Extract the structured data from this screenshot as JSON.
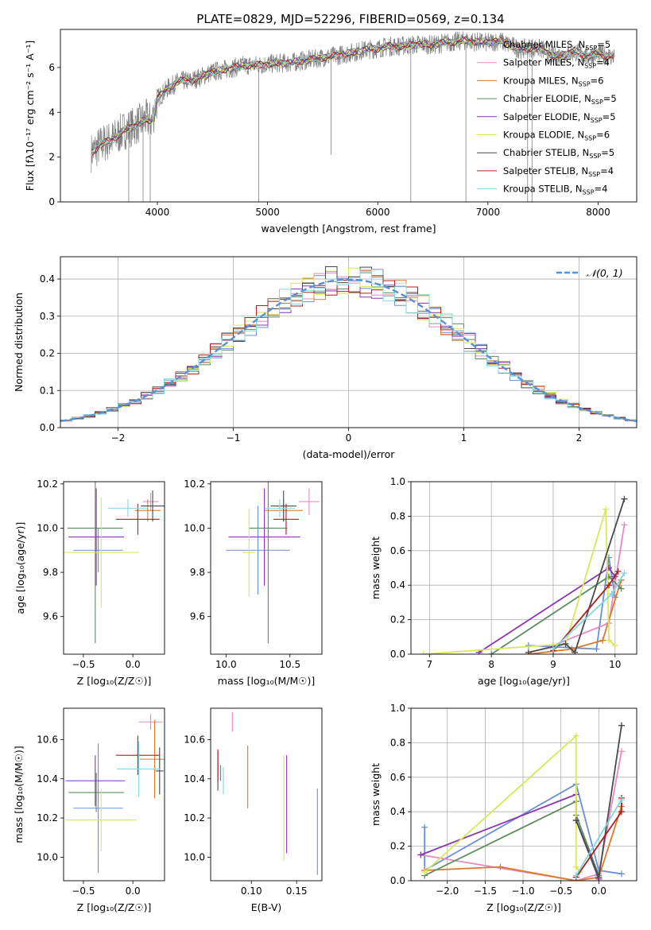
{
  "figure_title": "PLATE=0829, MJD=52296, FIBERID=0569, z=0.134",
  "colors": {
    "Chabrier MILES": "#6b8fd6",
    "Salpeter MILES": "#e88abf",
    "Kroupa MILES": "#dd7a2a",
    "Chabrier ELODIE": "#5e8c62",
    "Salpeter ELODIE": "#8a36b0",
    "Kroupa ELODIE": "#d9e85a",
    "Chabrier STELIB": "#4a4a4a",
    "Salpeter STELIB": "#b01e1e",
    "Kroupa STELIB": "#7ed9de",
    "data": "#808080",
    "normal": "#5b8fd6"
  },
  "chart_data": [
    {
      "id": "spectrum",
      "type": "line",
      "xlabel": "wavelength [Angstrom, rest frame]",
      "ylabel": "Flux [fλ10⁻¹⁷ erg cm⁻² s⁻¹ A⁻¹]",
      "xlim": [
        3120,
        8350
      ],
      "ylim": [
        0,
        7.7
      ],
      "xticks": [
        4000,
        5000,
        6000,
        7000,
        8000
      ],
      "yticks": [
        0,
        2,
        4,
        6
      ],
      "legend_position": "upper-right",
      "legend": [
        {
          "model": "Chabrier MILES",
          "n": "5"
        },
        {
          "model": "Salpeter MILES",
          "n": "4"
        },
        {
          "model": "Kroupa MILES",
          "n": "6"
        },
        {
          "model": "Chabrier ELODIE",
          "n": "5"
        },
        {
          "model": "Salpeter ELODIE",
          "n": "5"
        },
        {
          "model": "Kroupa ELODIE",
          "n": "6"
        },
        {
          "model": "Chabrier STELIB",
          "n": "5"
        },
        {
          "model": "Salpeter STELIB",
          "n": "4"
        },
        {
          "model": "Kroupa STELIB",
          "n": "4"
        }
      ],
      "continuum": [
        [
          3400,
          2.2
        ],
        [
          3500,
          2.6
        ],
        [
          3600,
          2.8
        ],
        [
          3700,
          3.2
        ],
        [
          3800,
          3.4
        ],
        [
          3900,
          3.7
        ],
        [
          3950,
          3.6
        ],
        [
          4000,
          4.6
        ],
        [
          4100,
          5.1
        ],
        [
          4200,
          5.4
        ],
        [
          4300,
          5.4
        ],
        [
          4400,
          5.6
        ],
        [
          4500,
          5.8
        ],
        [
          4600,
          5.9
        ],
        [
          4700,
          6.0
        ],
        [
          4800,
          6.1
        ],
        [
          4900,
          6.1
        ],
        [
          5000,
          6.15
        ],
        [
          5100,
          6.2
        ],
        [
          5200,
          6.2
        ],
        [
          5300,
          6.3
        ],
        [
          5400,
          6.35
        ],
        [
          5500,
          6.45
        ],
        [
          5600,
          6.5
        ],
        [
          5700,
          6.6
        ],
        [
          5800,
          6.7
        ],
        [
          5900,
          6.8
        ],
        [
          6000,
          6.85
        ],
        [
          6100,
          6.95
        ],
        [
          6200,
          6.95
        ],
        [
          6300,
          7.0
        ],
        [
          6400,
          7.05
        ],
        [
          6500,
          7.0
        ],
        [
          6600,
          7.1
        ],
        [
          6700,
          7.15
        ],
        [
          6800,
          7.2
        ],
        [
          6900,
          7.15
        ],
        [
          7000,
          7.1
        ],
        [
          7100,
          7.2
        ],
        [
          7200,
          7.0
        ],
        [
          7300,
          6.8
        ],
        [
          7400,
          6.9
        ],
        [
          7500,
          6.8
        ],
        [
          7600,
          6.5
        ],
        [
          7700,
          6.6
        ],
        [
          7800,
          6.7
        ],
        [
          7900,
          6.5
        ],
        [
          8000,
          6.6
        ],
        [
          8100,
          6.5
        ]
      ]
    },
    {
      "id": "residuals",
      "type": "histogram",
      "xlabel": "(data-model)/error",
      "ylabel": "Normed distribution",
      "xlim": [
        -2.5,
        2.5
      ],
      "ylim": [
        0,
        0.46
      ],
      "xticks": [
        -2,
        -1,
        0,
        1,
        2
      ],
      "yticks": [
        0.0,
        0.1,
        0.2,
        0.3,
        0.4
      ],
      "grid": true,
      "bin_width": 0.1,
      "legend_label": "𝒩(0, 1)",
      "legend_position": "upper-right"
    },
    {
      "id": "age-vs-Z",
      "type": "errorbar",
      "xlabel": "Z [log₁₀(Z/Z☉)]",
      "ylabel": "age  [log₁₀(age/yr)]",
      "xlim": [
        -0.7,
        0.32
      ],
      "ylim": [
        9.43,
        10.21
      ],
      "xticks": [
        -0.5,
        0.0
      ],
      "yticks": [
        9.6,
        9.8,
        10.0,
        10.2
      ],
      "points": [
        {
          "model": "Chabrier MILES",
          "x": -0.35,
          "y": 9.9,
          "xerr": 0.25,
          "yerr": 0.1
        },
        {
          "model": "Salpeter MILES",
          "x": 0.18,
          "y": 10.12,
          "xerr": 0.08,
          "yerr": 0.04
        },
        {
          "model": "Kroupa MILES",
          "x": 0.15,
          "y": 10.08,
          "xerr": 0.13,
          "yerr": 0.05
        },
        {
          "model": "Chabrier ELODIE",
          "x": -0.38,
          "y": 10.0,
          "xerr": 0.28,
          "yerr": 0.52
        },
        {
          "model": "Salpeter ELODIE",
          "x": -0.37,
          "y": 9.96,
          "xerr": 0.28,
          "yerr": 0.22
        },
        {
          "model": "Kroupa ELODIE",
          "x": -0.32,
          "y": 9.89,
          "xerr": 0.38,
          "yerr": 0.25
        },
        {
          "model": "Chabrier STELIB",
          "x": 0.2,
          "y": 10.1,
          "xerr": 0.12,
          "yerr": 0.07
        },
        {
          "model": "Salpeter STELIB",
          "x": 0.05,
          "y": 10.04,
          "xerr": 0.22,
          "yerr": 0.07
        },
        {
          "model": "Kroupa STELIB",
          "x": -0.05,
          "y": 10.09,
          "xerr": 0.2,
          "yerr": 0.04
        }
      ]
    },
    {
      "id": "age-vs-mass",
      "type": "errorbar",
      "xlabel": "mass [log₁₀(M/M☉)]",
      "ylabel": "",
      "xlim": [
        9.88,
        10.75
      ],
      "ylim": [
        9.43,
        10.21
      ],
      "xticks": [
        10.0,
        10.5
      ],
      "yticks": [
        9.6,
        9.8,
        10.0,
        10.2
      ],
      "points": [
        {
          "model": "Chabrier MILES",
          "x": 10.25,
          "y": 9.9,
          "xerr": 0.25,
          "yerr": 0.2
        },
        {
          "model": "Salpeter MILES",
          "x": 10.65,
          "y": 10.12,
          "xerr": 0.08,
          "yerr": 0.06
        },
        {
          "model": "Kroupa MILES",
          "x": 10.45,
          "y": 10.08,
          "xerr": 0.15,
          "yerr": 0.05
        },
        {
          "model": "Chabrier ELODIE",
          "x": 10.33,
          "y": 10.0,
          "xerr": 0.15,
          "yerr": 0.52
        },
        {
          "model": "Salpeter ELODIE",
          "x": 10.3,
          "y": 9.96,
          "xerr": 0.28,
          "yerr": 0.22
        },
        {
          "model": "Kroupa ELODIE",
          "x": 10.18,
          "y": 9.89,
          "xerr": 0.05,
          "yerr": 0.2
        },
        {
          "model": "Chabrier STELIB",
          "x": 10.45,
          "y": 10.1,
          "xerr": 0.1,
          "yerr": 0.07
        },
        {
          "model": "Salpeter STELIB",
          "x": 10.47,
          "y": 10.04,
          "xerr": 0.1,
          "yerr": 0.07
        },
        {
          "model": "Kroupa STELIB",
          "x": 10.42,
          "y": 10.09,
          "xerr": 0.12,
          "yerr": 0.04
        }
      ]
    },
    {
      "id": "mw-vs-age",
      "type": "line",
      "xlabel": "age  [log₁₀(age/yr)]",
      "ylabel": "mass weight",
      "xlim": [
        6.7,
        10.35
      ],
      "ylim": [
        0,
        1.0
      ],
      "xticks": [
        7,
        8,
        9,
        10
      ],
      "yticks": [
        0.0,
        0.2,
        0.4,
        0.6,
        0.8,
        1.0
      ],
      "grid": true,
      "series": [
        {
          "model": "Chabrier MILES",
          "x": [
            8.6,
            9.7,
            9.9,
            10.0
          ],
          "y": [
            0.05,
            0.03,
            0.56,
            0.33
          ]
        },
        {
          "model": "Salpeter MILES",
          "x": [
            9.0,
            9.9,
            10.15
          ],
          "y": [
            0.05,
            0.18,
            0.75
          ]
        },
        {
          "model": "Kroupa MILES",
          "x": [
            8.6,
            9.3,
            9.8,
            10.1
          ],
          "y": [
            0.0,
            0.03,
            0.08,
            0.43
          ]
        },
        {
          "model": "Chabrier ELODIE",
          "x": [
            8.0,
            9.9,
            10.1
          ],
          "y": [
            0.0,
            0.45,
            0.38
          ]
        },
        {
          "model": "Salpeter ELODIE",
          "x": [
            7.8,
            9.9,
            10.0
          ],
          "y": [
            0.01,
            0.5,
            0.45
          ]
        },
        {
          "model": "Kroupa ELODIE",
          "x": [
            6.9,
            9.2,
            9.85,
            9.9,
            10.0
          ],
          "y": [
            0.0,
            0.06,
            0.84,
            0.08,
            0.05
          ]
        },
        {
          "model": "Chabrier STELIB",
          "x": [
            8.6,
            9.2,
            9.35,
            10.15
          ],
          "y": [
            0.01,
            0.06,
            0.01,
            0.9
          ]
        },
        {
          "model": "Salpeter STELIB",
          "x": [
            9.0,
            9.9,
            10.05
          ],
          "y": [
            0.02,
            0.4,
            0.48
          ]
        },
        {
          "model": "Kroupa STELIB",
          "x": [
            9.0,
            9.95,
            10.15
          ],
          "y": [
            0.03,
            0.35,
            0.47
          ]
        }
      ]
    },
    {
      "id": "mass-vs-Z",
      "type": "errorbar",
      "xlabel": "Z [log₁₀(Z/Z☉)]",
      "ylabel": "mass [log₁₀(M/M☉)]",
      "xlim": [
        -0.7,
        0.32
      ],
      "ylim": [
        9.88,
        10.76
      ],
      "xticks": [
        -0.5,
        0.0
      ],
      "yticks": [
        10.0,
        10.2,
        10.4,
        10.6
      ],
      "points": [
        {
          "model": "Chabrier MILES",
          "x": -0.35,
          "y": 10.25,
          "xerr": 0.25,
          "yerr": 0.33
        },
        {
          "model": "Salpeter MILES",
          "x": 0.18,
          "y": 10.69,
          "xerr": 0.12,
          "yerr": 0.04
        },
        {
          "model": "Kroupa MILES",
          "x": 0.22,
          "y": 10.5,
          "xerr": 0.15,
          "yerr": 0.2
        },
        {
          "model": "Chabrier ELODIE",
          "x": -0.37,
          "y": 10.33,
          "xerr": 0.28,
          "yerr": 0.1
        },
        {
          "model": "Salpeter ELODIE",
          "x": -0.38,
          "y": 10.39,
          "xerr": 0.3,
          "yerr": 0.13
        },
        {
          "model": "Kroupa ELODIE",
          "x": -0.32,
          "y": 10.19,
          "xerr": 0.36,
          "yerr": 0.16
        },
        {
          "model": "Chabrier STELIB",
          "x": 0.27,
          "y": 10.44,
          "xerr": 0.04,
          "yerr": 0.12
        },
        {
          "model": "Salpeter STELIB",
          "x": 0.05,
          "y": 10.52,
          "xerr": 0.22,
          "yerr": 0.1
        },
        {
          "model": "Kroupa STELIB",
          "x": 0.06,
          "y": 10.45,
          "xerr": 0.22,
          "yerr": 0.14
        }
      ]
    },
    {
      "id": "mass-vs-EBV",
      "type": "errorbar",
      "xlabel": "E(B-V)",
      "ylabel": "",
      "xlim": [
        0.055,
        0.178
      ],
      "ylim": [
        9.88,
        10.76
      ],
      "xticks": [
        0.1,
        0.15
      ],
      "yticks": [
        10.0,
        10.2,
        10.4,
        10.6
      ],
      "points": [
        {
          "model": "Chabrier MILES",
          "x": 0.173,
          "y": 10.13,
          "xerr": 0.0,
          "yerr": 0.22
        },
        {
          "model": "Salpeter MILES",
          "x": 0.079,
          "y": 10.69,
          "xerr": 0.0,
          "yerr": 0.05
        },
        {
          "model": "Kroupa MILES",
          "x": 0.096,
          "y": 10.41,
          "xerr": 0.0,
          "yerr": 0.16
        },
        {
          "model": "Chabrier ELODIE",
          "x": 0.066,
          "y": 10.43,
          "xerr": 0.0,
          "yerr": 0.04
        },
        {
          "model": "Salpeter ELODIE",
          "x": 0.139,
          "y": 10.27,
          "xerr": 0.0,
          "yerr": 0.25
        },
        {
          "model": "Kroupa ELODIE",
          "x": 0.136,
          "y": 10.25,
          "xerr": 0.0,
          "yerr": 0.27
        },
        {
          "model": "Chabrier STELIB",
          "x": 0.063,
          "y": 10.44,
          "xerr": 0.0,
          "yerr": 0.1
        },
        {
          "model": "Salpeter STELIB",
          "x": 0.063,
          "y": 10.47,
          "xerr": 0.0,
          "yerr": 0.08
        },
        {
          "model": "Kroupa STELIB",
          "x": 0.069,
          "y": 10.39,
          "xerr": 0.0,
          "yerr": 0.07
        }
      ]
    },
    {
      "id": "mw-vs-Z",
      "type": "line",
      "xlabel": "Z [log₁₀(Z/Z☉)]",
      "ylabel": "mass weight",
      "xlim": [
        -2.48,
        0.5
      ],
      "ylim": [
        0,
        1.0
      ],
      "xticks": [
        -2.0,
        -1.5,
        -1.0,
        -0.5,
        0.0
      ],
      "yticks": [
        0.0,
        0.2,
        0.4,
        0.6,
        0.8,
        1.0
      ],
      "grid": true,
      "series": [
        {
          "model": "Chabrier MILES",
          "x": [
            -2.3,
            -2.3,
            -0.3,
            0.0,
            0.3
          ],
          "y": [
            0.31,
            0.06,
            0.56,
            0.06,
            0.04
          ]
        },
        {
          "model": "Salpeter MILES",
          "x": [
            -2.35,
            -0.3,
            0.0,
            0.3
          ],
          "y": [
            0.15,
            0.0,
            0.04,
            0.75
          ]
        },
        {
          "model": "Kroupa MILES",
          "x": [
            -2.3,
            -1.3,
            -0.3,
            0.0,
            0.3
          ],
          "y": [
            0.06,
            0.08,
            0.0,
            0.02,
            0.43
          ]
        },
        {
          "model": "Chabrier ELODIE",
          "x": [
            -2.3,
            -0.3,
            -0.3,
            0.0
          ],
          "y": [
            0.03,
            0.46,
            0.38,
            0.03
          ]
        },
        {
          "model": "Salpeter ELODIE",
          "x": [
            -2.35,
            -0.3,
            -0.3,
            0.0
          ],
          "y": [
            0.15,
            0.5,
            0.35,
            0.01
          ]
        },
        {
          "model": "Kroupa ELODIE",
          "x": [
            -2.3,
            -0.3,
            -0.3,
            -0.25
          ],
          "y": [
            0.05,
            0.84,
            0.08,
            0.05
          ]
        },
        {
          "model": "Chabrier STELIB",
          "x": [
            -0.3,
            0.0,
            0.3
          ],
          "y": [
            0.35,
            0.02,
            0.9
          ]
        },
        {
          "model": "Salpeter STELIB",
          "x": [
            -0.3,
            0.3,
            0.3
          ],
          "y": [
            0.02,
            0.4,
            0.48
          ]
        },
        {
          "model": "Kroupa STELIB",
          "x": [
            -0.3,
            0.3
          ],
          "y": [
            0.03,
            0.47
          ]
        }
      ]
    }
  ]
}
